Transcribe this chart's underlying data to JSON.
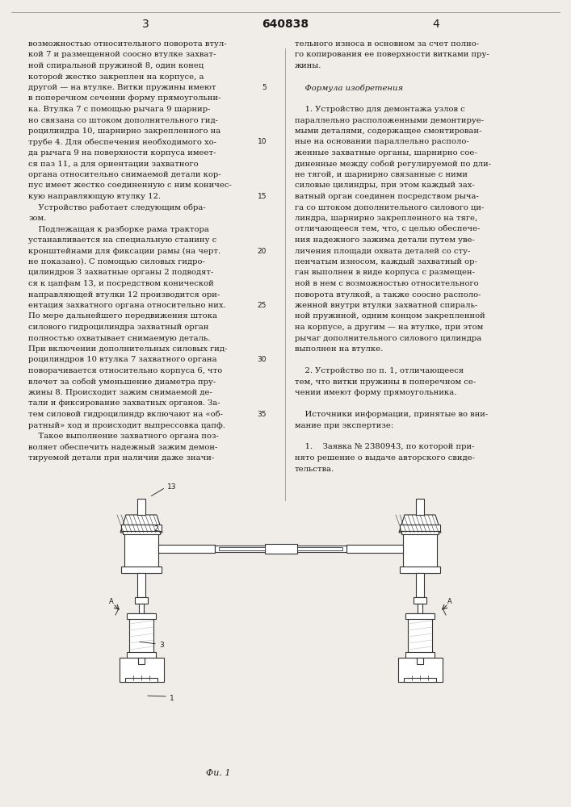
{
  "page_number_left": "3",
  "page_number_center": "640838",
  "page_number_right": "4",
  "bg_color": "#f0ede8",
  "text_color": "#1a1a1a",
  "fig_caption": "Фи⁡. 1",
  "col1_lines": [
    "возможностью относительного поворота втул-",
    "кой 7 и размещенной соосно втулке захват-",
    "ной спиральной пружиной 8, один конец",
    "которой жестко закреплен на корпусе, а",
    "другой — на втулке. Витки пружины имеют",
    "в поперечном сечении форму прямоугольни-",
    "ка. Втулка 7 с помощью рычага 9 шарнир-",
    "но связана со штоком дополнительного гид-",
    "роцилиндра 10, шарнирно закрепленного на",
    "трубе 4. Для обеспечения необходимого хо-",
    "да рычага 9 на поверхности корпуса имеет-",
    "ся паз 11, а для ориентации захватного",
    "органа относительно снимаемой детали кор-",
    "пус имеет жестко соединенную с ним коничес-",
    "кую направляющую втулку 12.",
    "    Устройство работает следующим обра-",
    "зом.",
    "    Подлежащая к разборке рама трактора",
    "устанавливается на специальную станину с",
    "кронштейнами для фиксации рамы (на черт.",
    "не показано). С помощью силовых гидро-",
    "цилиндров 3 захватные органы 2 подводят-",
    "ся к цапфам 13, и посредством конической",
    "направляющей втулки 12 производится ори-",
    "ентация захватного органа относительно них.",
    "По мере дальнейшего передвижения штока",
    "силового гидроцилиндра захватный орган",
    "полностью охватывает снимаемую деталь.",
    "При включении дополнительных силовых гид-",
    "роцилиндров 10 втулка 7 захватного органа",
    "поворачивается относительно корпуса 6, что",
    "влечет за собой уменьшение диаметра пру-",
    "жины 8. Происходит зажим снимаемой де-",
    "тали и фиксирование захватных органов. За-"
  ],
  "col1_continued": [
    "тем силовой гидроцилиндр включают на «об-",
    "ратный» ход и происходит выпрессовка цапф.",
    "    Такое выполнение захватного органа поз-",
    "воляет обеспечить надежный зажим демон-",
    "тируемой детали при наличии даже значи-"
  ],
  "col2_lines": [
    "тельного износа в основном за счет полно-",
    "го копирования ее поверхности витками пру-",
    "жины.",
    "",
    "    Формула изобретения",
    "",
    "    1. Устройство для демонтажа узлов с",
    "параллельно расположенными демонтируе-",
    "мыми деталями, содержащее смонтирован-",
    "ные на основании параллельно располо-",
    "женные захватные органы, шарнирно сое-",
    "диненные между собой регулируемой по дли-",
    "не тягой, и шарнирно связанные с ними",
    "силовые цилиндры, при этом каждый зах-",
    "ватный орган соединен посредством рыча-",
    "га со штоком дополнительного силового ци-",
    "линдра, шарнирно закрепленного на тяге,",
    "отличающееся тем, что, с целью обеспече-",
    "ния надежного зажима детали путем уве-",
    "личения площади охвата деталей со сту-",
    "пенчатым износом, каждый захватный ор-",
    "ган выполнен в виде корпуса с размещен-",
    "ной в нем с возможностью относительного",
    "поворота втулкой, а также соосно располо-",
    "женной внутри втулки захватной спираль-",
    "ной пружиной, одним концом закрепленной",
    "на корпусе, а другим — на втулке, при этом",
    "рычаг дополнительного силового цилиндра",
    "выполнен на втулке.",
    "",
    "    2. Устройство по п. 1, отличающееся",
    "тем, что витки пружины в поперечном се-",
    "чении имеют форму прямоугольника.",
    "",
    "    Источники информации, принятые во вни-",
    "мание при экспертизе:",
    "",
    "    1.    Заявка № 2380943, по которой при-",
    "нято решение о выдаче авторского свиде-",
    "тельства."
  ]
}
